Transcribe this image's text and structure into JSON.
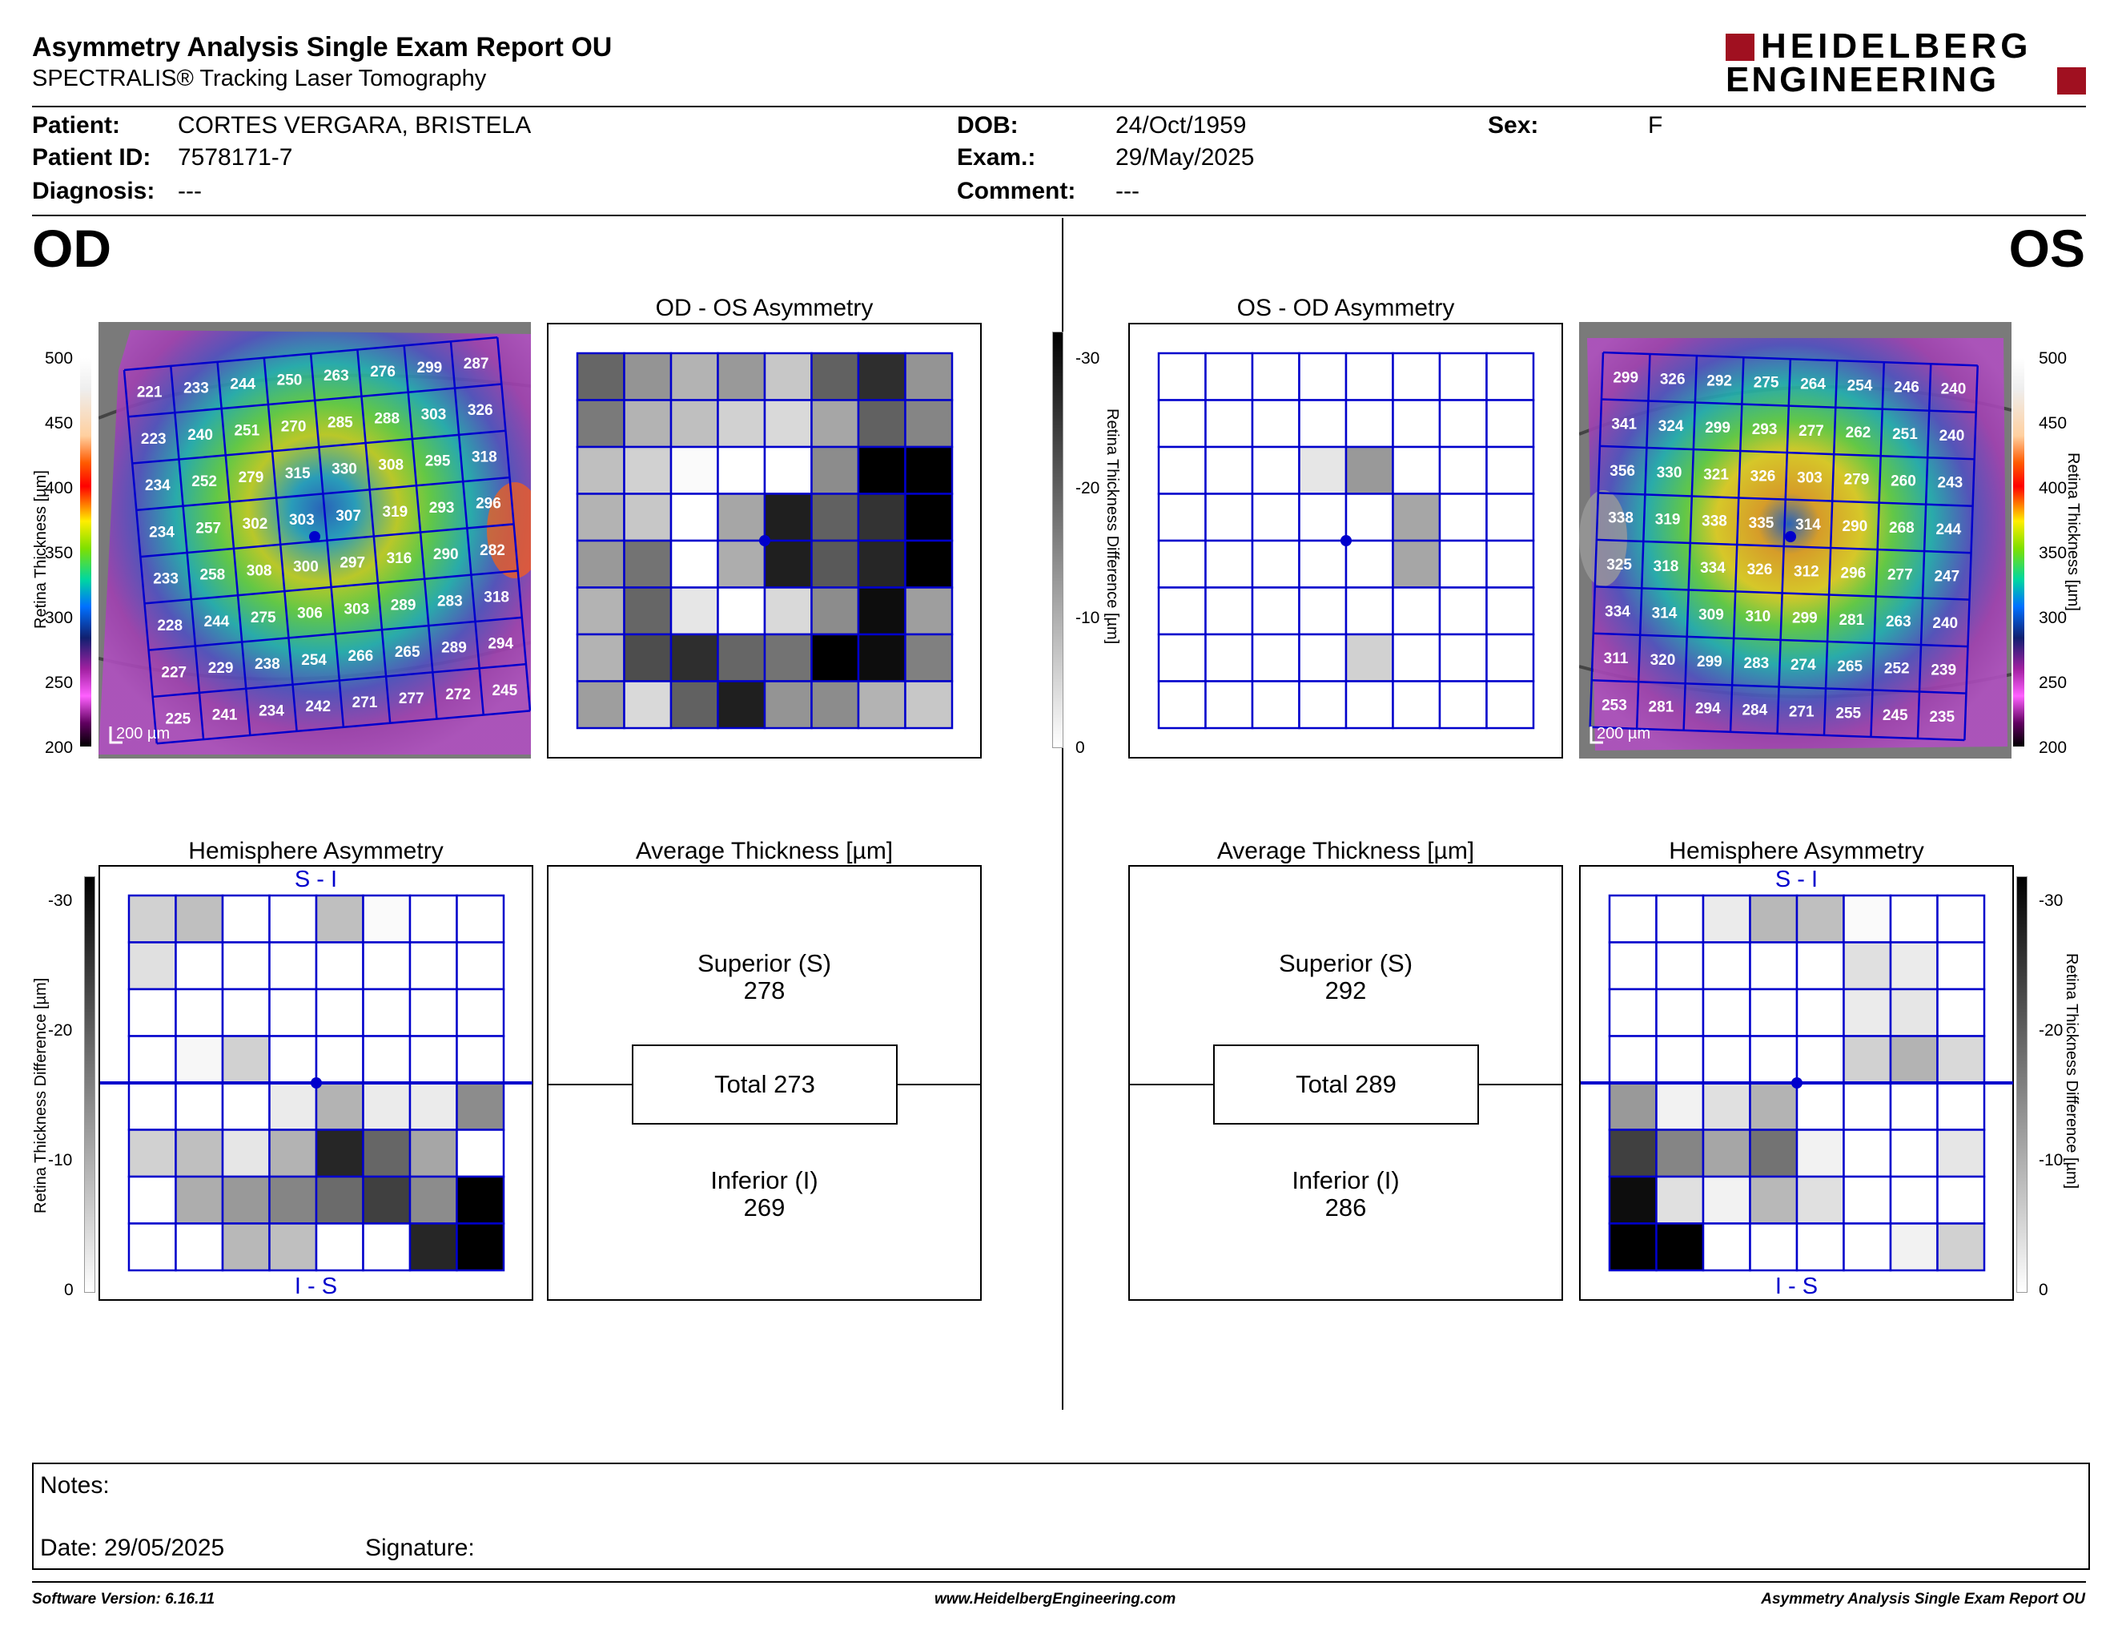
{
  "header": {
    "title": "Asymmetry Analysis Single Exam Report OU",
    "subtitle": "SPECTRALIS® Tracking Laser Tomography",
    "logo_line1": "HEIDELBERG",
    "logo_line2": "ENGINEERING"
  },
  "patient": {
    "patient_label": "Patient:",
    "patient_value": "CORTES VERGARA, BRISTELA",
    "id_label": "Patient ID:",
    "id_value": "7578171-7",
    "diagnosis_label": "Diagnosis:",
    "diagnosis_value": "---",
    "dob_label": "DOB:",
    "dob_value": "24/Oct/1959",
    "exam_label": "Exam.:",
    "exam_value": "29/May/2025",
    "comment_label": "Comment:",
    "comment_value": "---",
    "sex_label": "Sex:",
    "sex_value": "F"
  },
  "eyes": {
    "od": "OD",
    "os": "OS"
  },
  "titles": {
    "od_os_asym": "OD - OS Asymmetry",
    "os_od_asym": "OS - OD Asymmetry",
    "hemi_od": "Hemisphere Asymmetry",
    "hemi_os": "Hemisphere Asymmetry",
    "avg_od": "Average Thickness [µm]",
    "avg_os": "Average Thickness [µm]"
  },
  "scales": {
    "thickness_ticks": [
      "500",
      "450",
      "400",
      "350",
      "300",
      "250",
      "200"
    ],
    "thickness_label": "Retina  Thickness [µm]",
    "diff_ticks": [
      "-30",
      "-20",
      "-10",
      "0"
    ],
    "diff_label": "Retina Thickness Difference [µm]",
    "scale_bar": "200 µm"
  },
  "od_thickness": [
    [
      221,
      233,
      244,
      250,
      263,
      276,
      299,
      287
    ],
    [
      223,
      240,
      251,
      270,
      285,
      288,
      303,
      326
    ],
    [
      234,
      252,
      279,
      315,
      330,
      308,
      295,
      318
    ],
    [
      234,
      257,
      302,
      303,
      307,
      319,
      293,
      296
    ],
    [
      233,
      258,
      308,
      300,
      297,
      316,
      290,
      282
    ],
    [
      228,
      244,
      275,
      306,
      303,
      289,
      283,
      318
    ],
    [
      227,
      229,
      238,
      254,
      266,
      265,
      289,
      294
    ],
    [
      225,
      241,
      234,
      242,
      271,
      277,
      272,
      245
    ]
  ],
  "os_thickness": [
    [
      299,
      326,
      292,
      275,
      264,
      254,
      246,
      240
    ],
    [
      341,
      324,
      299,
      293,
      277,
      262,
      251,
      240
    ],
    [
      356,
      330,
      321,
      326,
      303,
      279,
      260,
      243
    ],
    [
      338,
      319,
      338,
      335,
      314,
      290,
      268,
      244
    ],
    [
      325,
      318,
      334,
      326,
      312,
      296,
      277,
      247
    ],
    [
      334,
      314,
      309,
      310,
      299,
      281,
      263,
      240
    ],
    [
      311,
      320,
      299,
      283,
      274,
      265,
      252,
      239
    ],
    [
      253,
      281,
      294,
      284,
      271,
      255,
      245,
      235
    ]
  ],
  "od_os_asym_grid": [
    [
      0.6,
      0.42,
      0.3,
      0.4,
      0.22,
      0.62,
      0.82,
      0.42
    ],
    [
      0.52,
      0.3,
      0.25,
      0.18,
      0.15,
      0.35,
      0.62,
      0.48
    ],
    [
      0.25,
      0.18,
      0.02,
      0.0,
      0.0,
      0.45,
      1.0,
      1.0
    ],
    [
      0.3,
      0.22,
      0.0,
      0.35,
      0.88,
      0.62,
      0.8,
      1.0
    ],
    [
      0.4,
      0.55,
      0.0,
      0.32,
      0.88,
      0.65,
      0.85,
      1.0
    ],
    [
      0.3,
      0.6,
      0.1,
      0.0,
      0.15,
      0.45,
      0.95,
      0.38
    ],
    [
      0.3,
      0.7,
      0.82,
      0.6,
      0.55,
      1.0,
      0.95,
      0.5
    ],
    [
      0.38,
      0.15,
      0.62,
      0.88,
      0.42,
      0.45,
      0.3,
      0.22
    ]
  ],
  "os_od_asym_grid": [
    [
      0,
      0,
      0,
      0,
      0,
      0,
      0,
      0
    ],
    [
      0,
      0,
      0,
      0,
      0,
      0,
      0,
      0
    ],
    [
      0,
      0,
      0,
      0.1,
      0.4,
      0,
      0,
      0
    ],
    [
      0,
      0,
      0,
      0,
      0,
      0.35,
      0,
      0
    ],
    [
      0,
      0,
      0,
      0,
      0,
      0.35,
      0,
      0
    ],
    [
      0,
      0,
      0,
      0,
      0,
      0,
      0,
      0
    ],
    [
      0,
      0,
      0,
      0,
      0.18,
      0,
      0,
      0
    ],
    [
      0,
      0,
      0,
      0,
      0,
      0,
      0,
      0
    ]
  ],
  "hemi_od_grid": [
    [
      0.18,
      0.25,
      0,
      0,
      0.25,
      0.02,
      0,
      0
    ],
    [
      0.12,
      0,
      0,
      0,
      0,
      0,
      0,
      0
    ],
    [
      0,
      0,
      0,
      0,
      0,
      0,
      0,
      0
    ],
    [
      0,
      0.03,
      0.18,
      0,
      0,
      0,
      0,
      0
    ],
    [
      0,
      0,
      0,
      0.08,
      0.3,
      0.08,
      0.08,
      0.45
    ],
    [
      0.18,
      0.25,
      0.1,
      0.3,
      0.85,
      0.6,
      0.35,
      0
    ],
    [
      0,
      0.32,
      0.4,
      0.48,
      0.58,
      0.75,
      0.45,
      1.0
    ],
    [
      0,
      0,
      0.28,
      0.25,
      0,
      0,
      0.85,
      1.0
    ]
  ],
  "hemi_os_grid": [
    [
      0,
      0,
      0.08,
      0.28,
      0.25,
      0.02,
      0,
      0
    ],
    [
      0,
      0,
      0,
      0,
      0,
      0.12,
      0.08,
      0
    ],
    [
      0,
      0,
      0,
      0,
      0,
      0.08,
      0.1,
      0
    ],
    [
      0,
      0,
      0,
      0,
      0,
      0.18,
      0.3,
      0.15
    ],
    [
      0.4,
      0.05,
      0.12,
      0.3,
      0,
      0,
      0,
      0
    ],
    [
      0.75,
      0.48,
      0.35,
      0.55,
      0.05,
      0,
      0,
      0.1
    ],
    [
      0.95,
      0.12,
      0.05,
      0.28,
      0.12,
      0,
      0,
      0
    ],
    [
      1.0,
      1.0,
      0,
      0,
      0,
      0,
      0.05,
      0.18
    ]
  ],
  "hemi_labels": {
    "top": "S - I",
    "bottom": "I - S"
  },
  "avg_od": {
    "superior_label": "Superior (S)",
    "superior_value": "278",
    "total": "Total 273",
    "inferior_label": "Inferior (I)",
    "inferior_value": "269"
  },
  "avg_os": {
    "superior_label": "Superior (S)",
    "superior_value": "292",
    "total": "Total 289",
    "inferior_label": "Inferior (I)",
    "inferior_value": "286"
  },
  "notes": {
    "notes_label": "Notes:",
    "date_label": "Date: 29/05/2025",
    "signature_label": "Signature:"
  },
  "footer": {
    "software": "Software Version: 6.16.11",
    "website": "www.HeidelbergEngineering.com",
    "report": "Asymmetry Analysis Single Exam Report OU"
  },
  "colors": {
    "grid_blue": "#0000cc",
    "logo_red": "#a01020"
  }
}
